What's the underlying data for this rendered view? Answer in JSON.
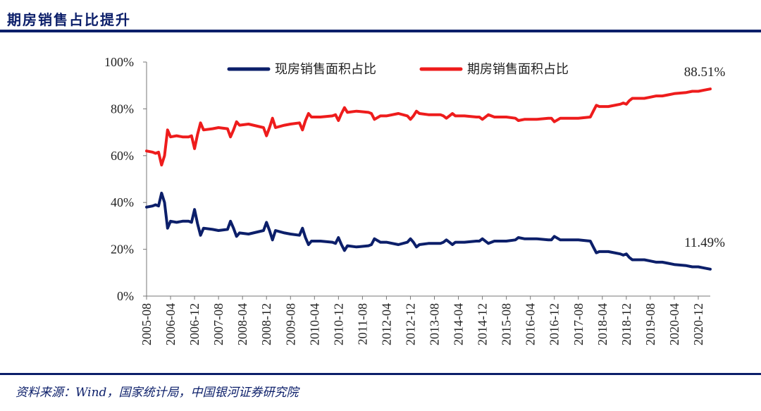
{
  "header": {
    "title": "期房销售占比提升"
  },
  "footer": {
    "source": "资料来源：Wind，国家统计局，中国银河证券研究院"
  },
  "chart_data": {
    "type": "line",
    "title": "期房销售占比提升",
    "xlabel": "",
    "ylabel": "",
    "ylim": [
      0,
      100
    ],
    "y_ticks": [
      "0%",
      "20%",
      "40%",
      "60%",
      "80%",
      "100%"
    ],
    "x_tick_labels": [
      "2005-08",
      "2006-04",
      "2006-12",
      "2007-08",
      "2008-04",
      "2008-12",
      "2009-08",
      "2010-04",
      "2010-12",
      "2011-08",
      "2012-04",
      "2012-12",
      "2013-08",
      "2014-04",
      "2014-12",
      "2015-08",
      "2016-04",
      "2016-12",
      "2017-08",
      "2018-04",
      "2018-12",
      "2019-08",
      "2020-04",
      "2020-12"
    ],
    "x_range": [
      "2005-08",
      "2021-04"
    ],
    "grid": false,
    "legend_position": "top",
    "colors": {
      "现房销售面积占比": "#0c1f6a",
      "期房销售面积占比": "#ee1c1c"
    },
    "series": [
      {
        "name": "现房销售面积占比",
        "points": [
          [
            "2005-08",
            38
          ],
          [
            "2005-10",
            38.5
          ],
          [
            "2005-11",
            39
          ],
          [
            "2005-12",
            38.5
          ],
          [
            "2006-01",
            44
          ],
          [
            "2006-02",
            40
          ],
          [
            "2006-03",
            29
          ],
          [
            "2006-04",
            32
          ],
          [
            "2006-06",
            31.5
          ],
          [
            "2006-08",
            32
          ],
          [
            "2006-10",
            32
          ],
          [
            "2006-11",
            31.5
          ],
          [
            "2006-12",
            37
          ],
          [
            "2007-01",
            31
          ],
          [
            "2007-02",
            26
          ],
          [
            "2007-03",
            29
          ],
          [
            "2007-06",
            28.5
          ],
          [
            "2007-08",
            28
          ],
          [
            "2007-11",
            28.5
          ],
          [
            "2007-12",
            32
          ],
          [
            "2008-01",
            29
          ],
          [
            "2008-02",
            25.5
          ],
          [
            "2008-03",
            27
          ],
          [
            "2008-06",
            26.5
          ],
          [
            "2008-11",
            28
          ],
          [
            "2008-12",
            31.5
          ],
          [
            "2009-01",
            28
          ],
          [
            "2009-02",
            24
          ],
          [
            "2009-03",
            28
          ],
          [
            "2009-06",
            27
          ],
          [
            "2009-08",
            26.5
          ],
          [
            "2009-11",
            26
          ],
          [
            "2009-12",
            29
          ],
          [
            "2010-01",
            25
          ],
          [
            "2010-02",
            22
          ],
          [
            "2010-03",
            23.5
          ],
          [
            "2010-06",
            23.5
          ],
          [
            "2010-10",
            23
          ],
          [
            "2010-11",
            22.5
          ],
          [
            "2010-12",
            25
          ],
          [
            "2011-01",
            22
          ],
          [
            "2011-02",
            19.5
          ],
          [
            "2011-03",
            21.5
          ],
          [
            "2011-06",
            21
          ],
          [
            "2011-10",
            21.5
          ],
          [
            "2011-11",
            22
          ],
          [
            "2011-12",
            24.5
          ],
          [
            "2012-02",
            23
          ],
          [
            "2012-04",
            23
          ],
          [
            "2012-08",
            22
          ],
          [
            "2012-11",
            23
          ],
          [
            "2012-12",
            24.5
          ],
          [
            "2013-01",
            23
          ],
          [
            "2013-02",
            21
          ],
          [
            "2013-03",
            22
          ],
          [
            "2013-06",
            22.5
          ],
          [
            "2013-10",
            22.5
          ],
          [
            "2013-11",
            23
          ],
          [
            "2013-12",
            24
          ],
          [
            "2014-01",
            23
          ],
          [
            "2014-02",
            22
          ],
          [
            "2014-03",
            23
          ],
          [
            "2014-06",
            23
          ],
          [
            "2014-10",
            23.5
          ],
          [
            "2014-11",
            23.5
          ],
          [
            "2014-12",
            24.5
          ],
          [
            "2015-02",
            22.5
          ],
          [
            "2015-04",
            23.5
          ],
          [
            "2015-08",
            23.5
          ],
          [
            "2015-11",
            24
          ],
          [
            "2015-12",
            25
          ],
          [
            "2016-02",
            24.5
          ],
          [
            "2016-06",
            24.5
          ],
          [
            "2016-10",
            24
          ],
          [
            "2016-11",
            24
          ],
          [
            "2016-12",
            25.5
          ],
          [
            "2017-02",
            24
          ],
          [
            "2017-04",
            24
          ],
          [
            "2017-08",
            24
          ],
          [
            "2017-12",
            23.5
          ],
          [
            "2018-01",
            21
          ],
          [
            "2018-02",
            18.5
          ],
          [
            "2018-03",
            19
          ],
          [
            "2018-06",
            19
          ],
          [
            "2018-10",
            18
          ],
          [
            "2018-11",
            17.5
          ],
          [
            "2018-12",
            18
          ],
          [
            "2019-01",
            16.5
          ],
          [
            "2019-02",
            15.5
          ],
          [
            "2019-06",
            15.5
          ],
          [
            "2019-08",
            15
          ],
          [
            "2019-10",
            14.5
          ],
          [
            "2019-12",
            14.5
          ],
          [
            "2020-02",
            14
          ],
          [
            "2020-04",
            13.5
          ],
          [
            "2020-08",
            13
          ],
          [
            "2020-10",
            12.5
          ],
          [
            "2020-12",
            12.5
          ],
          [
            "2021-02",
            12
          ],
          [
            "2021-04",
            11.5
          ]
        ],
        "end_label": "11.49%"
      },
      {
        "name": "期房销售面积占比",
        "points": [
          [
            "2005-08",
            62
          ],
          [
            "2005-10",
            61.5
          ],
          [
            "2005-11",
            61
          ],
          [
            "2005-12",
            61.5
          ],
          [
            "2006-01",
            56
          ],
          [
            "2006-02",
            60
          ],
          [
            "2006-03",
            71
          ],
          [
            "2006-04",
            68
          ],
          [
            "2006-06",
            68.5
          ],
          [
            "2006-08",
            68
          ],
          [
            "2006-10",
            68
          ],
          [
            "2006-11",
            68.5
          ],
          [
            "2006-12",
            63
          ],
          [
            "2007-01",
            69
          ],
          [
            "2007-02",
            74
          ],
          [
            "2007-03",
            71
          ],
          [
            "2007-06",
            71.5
          ],
          [
            "2007-08",
            72
          ],
          [
            "2007-11",
            71.5
          ],
          [
            "2007-12",
            68
          ],
          [
            "2008-01",
            71
          ],
          [
            "2008-02",
            74.5
          ],
          [
            "2008-03",
            73
          ],
          [
            "2008-06",
            73.5
          ],
          [
            "2008-11",
            72
          ],
          [
            "2008-12",
            68.5
          ],
          [
            "2009-01",
            72
          ],
          [
            "2009-02",
            76
          ],
          [
            "2009-03",
            72
          ],
          [
            "2009-06",
            73
          ],
          [
            "2009-08",
            73.5
          ],
          [
            "2009-11",
            74
          ],
          [
            "2009-12",
            71
          ],
          [
            "2010-01",
            75
          ],
          [
            "2010-02",
            78
          ],
          [
            "2010-03",
            76.5
          ],
          [
            "2010-06",
            76.5
          ],
          [
            "2010-10",
            77
          ],
          [
            "2010-11",
            77.5
          ],
          [
            "2010-12",
            75
          ],
          [
            "2011-01",
            78
          ],
          [
            "2011-02",
            80.5
          ],
          [
            "2011-03",
            78.5
          ],
          [
            "2011-06",
            79
          ],
          [
            "2011-10",
            78.5
          ],
          [
            "2011-11",
            78
          ],
          [
            "2011-12",
            75.5
          ],
          [
            "2012-02",
            77
          ],
          [
            "2012-04",
            77
          ],
          [
            "2012-08",
            78
          ],
          [
            "2012-11",
            77
          ],
          [
            "2012-12",
            75.5
          ],
          [
            "2013-01",
            77
          ],
          [
            "2013-02",
            79
          ],
          [
            "2013-03",
            78
          ],
          [
            "2013-06",
            77.5
          ],
          [
            "2013-10",
            77.5
          ],
          [
            "2013-11",
            77
          ],
          [
            "2013-12",
            76
          ],
          [
            "2014-01",
            77
          ],
          [
            "2014-02",
            78
          ],
          [
            "2014-03",
            77
          ],
          [
            "2014-06",
            77
          ],
          [
            "2014-10",
            76.5
          ],
          [
            "2014-11",
            76.5
          ],
          [
            "2014-12",
            75.5
          ],
          [
            "2015-02",
            77.5
          ],
          [
            "2015-04",
            76.5
          ],
          [
            "2015-08",
            76.5
          ],
          [
            "2015-11",
            76
          ],
          [
            "2015-12",
            75
          ],
          [
            "2016-02",
            75.5
          ],
          [
            "2016-06",
            75.5
          ],
          [
            "2016-10",
            76
          ],
          [
            "2016-11",
            76
          ],
          [
            "2016-12",
            74.5
          ],
          [
            "2017-02",
            76
          ],
          [
            "2017-04",
            76
          ],
          [
            "2017-08",
            76
          ],
          [
            "2017-12",
            76.5
          ],
          [
            "2018-01",
            79
          ],
          [
            "2018-02",
            81.5
          ],
          [
            "2018-03",
            81
          ],
          [
            "2018-06",
            81
          ],
          [
            "2018-10",
            82
          ],
          [
            "2018-11",
            82.5
          ],
          [
            "2018-12",
            82
          ],
          [
            "2019-01",
            83.5
          ],
          [
            "2019-02",
            84.5
          ],
          [
            "2019-06",
            84.5
          ],
          [
            "2019-08",
            85
          ],
          [
            "2019-10",
            85.5
          ],
          [
            "2019-12",
            85.5
          ],
          [
            "2020-02",
            86
          ],
          [
            "2020-04",
            86.5
          ],
          [
            "2020-08",
            87
          ],
          [
            "2020-10",
            87.5
          ],
          [
            "2020-12",
            87.5
          ],
          [
            "2021-02",
            88
          ],
          [
            "2021-04",
            88.5
          ]
        ],
        "end_label": "88.51%"
      }
    ]
  }
}
